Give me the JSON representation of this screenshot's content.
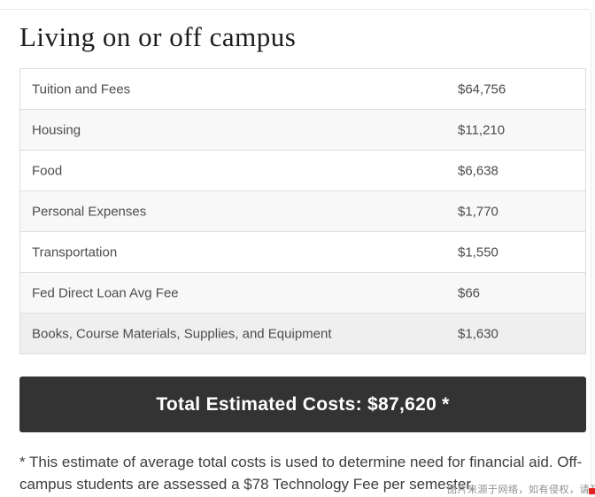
{
  "page": {
    "title": "Living on or off campus"
  },
  "cost_table": {
    "rows": [
      {
        "label": "Tuition and Fees",
        "value": "$64,756"
      },
      {
        "label": "Housing",
        "value": "$11,210"
      },
      {
        "label": "Food",
        "value": "$6,638"
      },
      {
        "label": "Personal Expenses",
        "value": "$1,770"
      },
      {
        "label": "Transportation",
        "value": "$1,550"
      },
      {
        "label": "Fed Direct Loan Avg Fee",
        "value": "$66"
      },
      {
        "label": "Books, Course Materials, Supplies, and Equipment",
        "value": "$1,630"
      }
    ]
  },
  "total_bar": {
    "text": "Total Estimated Costs: $87,620 *"
  },
  "footnote": {
    "lines": [
      "* This estimate of average total costs is used to determine need for financial aid. Off-",
      "campus students are assessed a $78 Technology Fee per semester."
    ],
    "full_text": "* This estimate of average total costs is used to determine need for financial aid. Off-campus students are assessed a $78 Technology Fee per semester."
  },
  "watermark": {
    "text": "图片来源于网络，如有侵权，请及时联系托普仕留学删除"
  },
  "colors": {
    "total_bar_bg": "#333333",
    "row_alt_bg": "#f8f8f8",
    "row_highlight_bg": "#efefef",
    "table_border": "#dddddd",
    "watermark_red": "#e02424"
  }
}
